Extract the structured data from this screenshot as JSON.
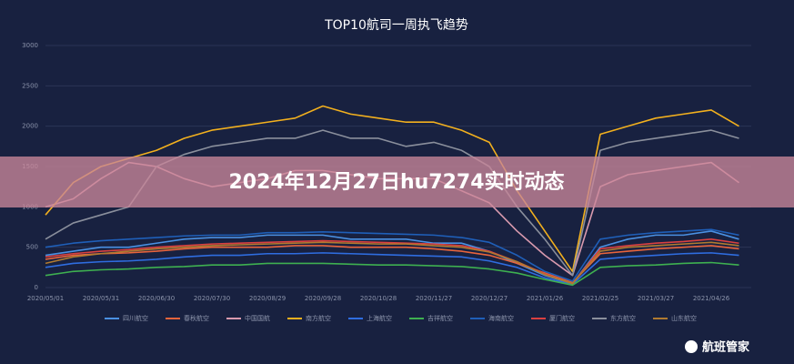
{
  "chart_data": {
    "type": "line",
    "title": "TOP10航司一周执飞趋势",
    "categories": [
      "2020/05/01",
      null,
      "2020/05/31",
      null,
      "2020/06/30",
      null,
      "2020/07/30",
      null,
      "2020/08/29",
      null,
      "2020/09/28",
      null,
      "2020/10/28",
      null,
      "2020/11/27",
      null,
      "2020/12/27",
      null,
      "2021/01/26",
      null,
      "2021/02/25",
      null,
      "2021/03/27",
      null,
      "2021/04/26",
      null
    ],
    "ylim": [
      0,
      3000
    ],
    "yticks": [
      0,
      500,
      1000,
      1500,
      2000,
      2500,
      3000
    ],
    "grid": true,
    "series": [
      {
        "name": "四川航空",
        "color": "#4a90e2",
        "values": [
          400,
          450,
          500,
          500,
          550,
          600,
          620,
          620,
          650,
          650,
          650,
          600,
          600,
          600,
          550,
          550,
          450,
          300,
          150,
          50,
          500,
          600,
          650,
          650,
          700,
          600
        ]
      },
      {
        "name": "春秋航空",
        "color": "#e8643c",
        "values": [
          350,
          400,
          420,
          430,
          450,
          480,
          500,
          500,
          500,
          520,
          520,
          500,
          500,
          500,
          480,
          450,
          400,
          300,
          180,
          60,
          420,
          450,
          480,
          500,
          520,
          480
        ]
      },
      {
        "name": "中国国航",
        "color": "#d99aae",
        "values": [
          1000,
          1100,
          1350,
          1550,
          1500,
          1350,
          1250,
          1300,
          1350,
          1450,
          1450,
          1400,
          1350,
          1350,
          1350,
          1200,
          1050,
          700,
          400,
          150,
          1250,
          1400,
          1450,
          1500,
          1550,
          1300
        ]
      },
      {
        "name": "南方航空",
        "color": "#f2b01e",
        "values": [
          900,
          1300,
          1500,
          1600,
          1700,
          1850,
          1950,
          2000,
          2050,
          2100,
          2250,
          2150,
          2100,
          2050,
          2050,
          1950,
          1800,
          1200,
          700,
          200,
          1900,
          2000,
          2100,
          2150,
          2200,
          2000
        ]
      },
      {
        "name": "上海航空",
        "color": "#2f6de0",
        "values": [
          250,
          300,
          320,
          330,
          350,
          380,
          400,
          400,
          420,
          420,
          430,
          420,
          410,
          400,
          390,
          380,
          330,
          250,
          120,
          40,
          350,
          380,
          400,
          420,
          430,
          400
        ]
      },
      {
        "name": "吉祥航空",
        "color": "#3eb050",
        "values": [
          150,
          200,
          220,
          230,
          250,
          260,
          280,
          280,
          300,
          300,
          300,
          290,
          280,
          280,
          270,
          260,
          230,
          180,
          100,
          30,
          250,
          270,
          280,
          300,
          310,
          280
        ]
      },
      {
        "name": "海南航空",
        "color": "#1f5fb8",
        "values": [
          500,
          550,
          580,
          600,
          620,
          640,
          650,
          650,
          680,
          680,
          690,
          680,
          670,
          660,
          650,
          620,
          560,
          400,
          200,
          80,
          600,
          650,
          680,
          700,
          720,
          650
        ]
      },
      {
        "name": "厦门航空",
        "color": "#d94040",
        "values": [
          380,
          420,
          450,
          470,
          500,
          520,
          540,
          550,
          560,
          570,
          580,
          570,
          560,
          550,
          540,
          520,
          450,
          320,
          170,
          50,
          480,
          520,
          550,
          570,
          600,
          550
        ]
      },
      {
        "name": "东方航空",
        "color": "#8a8f9c",
        "values": [
          600,
          800,
          900,
          1000,
          1500,
          1650,
          1750,
          1800,
          1850,
          1850,
          1950,
          1850,
          1850,
          1750,
          1800,
          1700,
          1500,
          1000,
          600,
          150,
          1700,
          1800,
          1850,
          1900,
          1950,
          1850
        ]
      },
      {
        "name": "山东航空",
        "color": "#b07a30",
        "values": [
          300,
          380,
          420,
          450,
          480,
          500,
          520,
          530,
          540,
          550,
          560,
          550,
          540,
          540,
          520,
          500,
          440,
          320,
          160,
          50,
          450,
          500,
          520,
          540,
          560,
          520
        ]
      }
    ]
  },
  "banner": {
    "title": "2024年12月27日hu7274实时动态"
  },
  "logo": {
    "text": "航班管家"
  }
}
